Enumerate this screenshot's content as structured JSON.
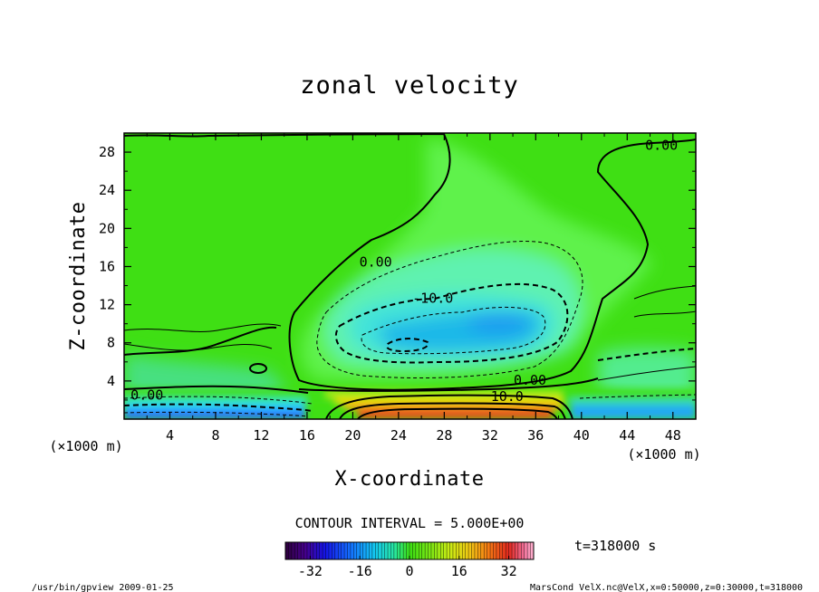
{
  "chart_data": {
    "type": "heatmap",
    "title": "zonal velocity",
    "xlabel": "X-coordinate",
    "ylabel": "Z-coordinate",
    "x_units": "(×1000 m)",
    "y_units": "(×1000 m)",
    "xlim": [
      0,
      50
    ],
    "ylim": [
      0,
      30
    ],
    "x_ticks": [
      "4",
      "8",
      "12",
      "16",
      "20",
      "24",
      "28",
      "32",
      "36",
      "40",
      "44",
      "48"
    ],
    "y_ticks": [
      "4",
      "8",
      "12",
      "16",
      "20",
      "24",
      "28"
    ],
    "contour_interval_text": "CONTOUR INTERVAL = 5.000E+00",
    "time_text": "t=318000  s",
    "colorbar": {
      "ticks": [
        "-32",
        "-16",
        "0",
        "16",
        "32"
      ],
      "range": [
        -40,
        40
      ]
    },
    "contour_labels": [
      {
        "text": "0.00",
        "x": 47.0,
        "y": 28.6
      },
      {
        "text": "0.00",
        "x": 22.0,
        "y": 16.4
      },
      {
        "text": "-10.0",
        "x": 27.0,
        "y": 12.6
      },
      {
        "text": "0.00",
        "x": 35.5,
        "y": 4.0
      },
      {
        "text": "10.0",
        "x": 33.5,
        "y": 2.3
      },
      {
        "text": "0.00",
        "x": 2.0,
        "y": 2.4
      }
    ],
    "features": [
      {
        "name": "negative jet core",
        "x": 31.5,
        "z": 10.0,
        "value": -20
      },
      {
        "name": "negative jet core",
        "x": 24.0,
        "z": 8.0,
        "value": -20
      },
      {
        "name": "near-surface positive flow",
        "x": 30.0,
        "z": 0.5,
        "value": 30
      },
      {
        "name": "near-surface negative flow",
        "x": 5.0,
        "z": 0.5,
        "value": -20
      }
    ]
  },
  "footer": {
    "left": "/usr/bin/gpview   2009-01-25",
    "right": "MarsCond_VelX.nc@VelX,x=0:50000,z=0:30000,t=318000"
  }
}
